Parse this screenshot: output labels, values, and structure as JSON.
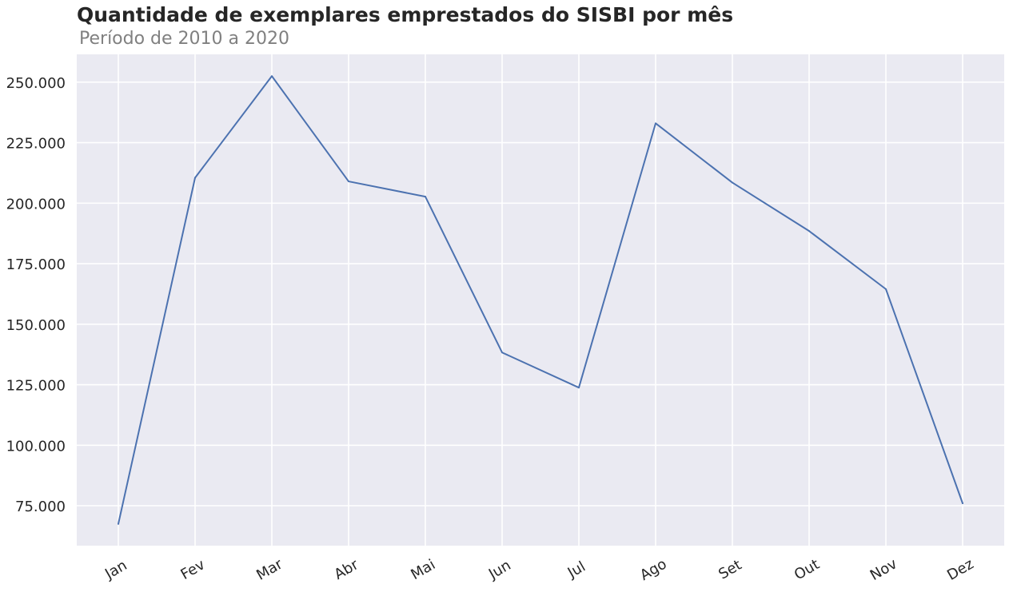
{
  "chart_data": {
    "type": "line",
    "title": "Quantidade de exemplares emprestados do SISBI por mês",
    "subtitle": "Período de 2010 a 2020",
    "xlabel": "",
    "ylabel": "",
    "categories": [
      "Jan",
      "Fev",
      "Mar",
      "Abr",
      "Mai",
      "Jun",
      "Jul",
      "Ago",
      "Set",
      "Out",
      "Nov",
      "Dez"
    ],
    "series": [
      {
        "values": [
          67500,
          210500,
          252500,
          209000,
          202700,
          138300,
          123800,
          233000,
          208500,
          188500,
          164500,
          76000
        ]
      }
    ],
    "ylim": [
      58500,
      261500
    ],
    "yticks": [
      75000,
      100000,
      125000,
      150000,
      175000,
      200000,
      225000,
      250000
    ],
    "ytick_labels": [
      "75.000",
      "100.000",
      "125.000",
      "150.000",
      "175.000",
      "200.000",
      "225.000",
      "250.000"
    ],
    "grid": true,
    "legend": "none",
    "colors": {
      "line": "#4c72b0",
      "plot_background": "#eaeaf2",
      "grid": "#ffffff"
    }
  }
}
